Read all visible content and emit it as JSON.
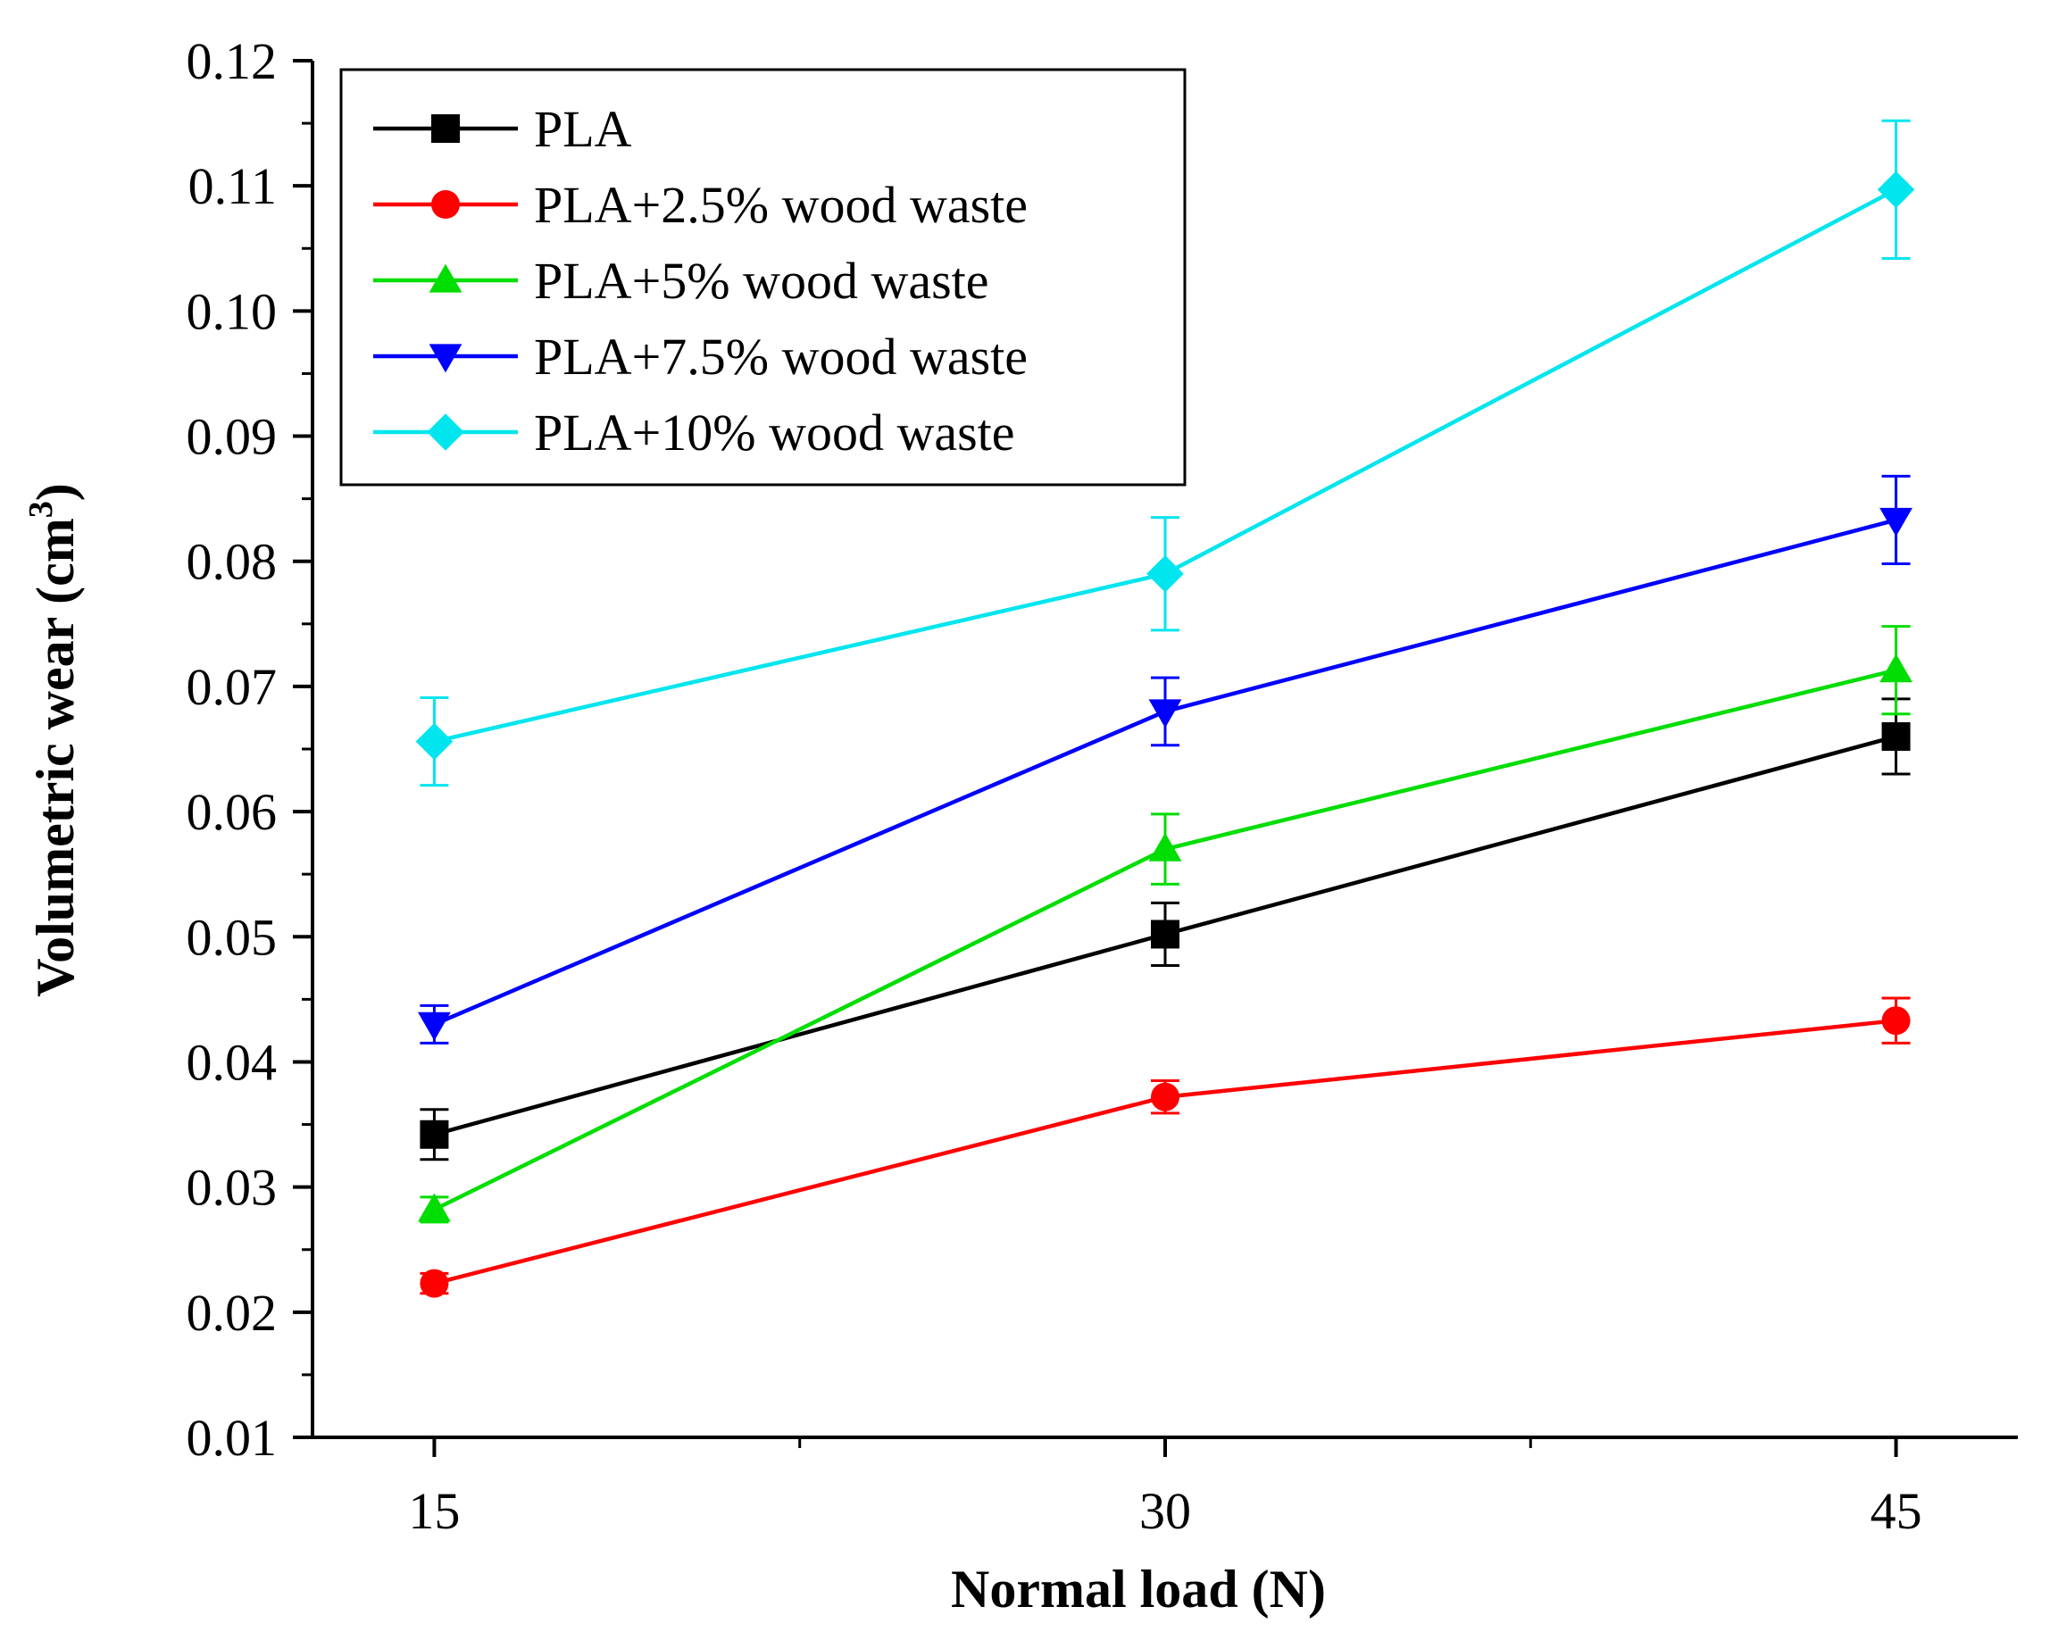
{
  "chart_data": {
    "type": "line",
    "title": "",
    "xlabel": "Normal load (N)",
    "ylabel_main": "Volumetric wear (cm",
    "ylabel_sup": "3",
    "ylabel_close": ")",
    "x": [
      15,
      30,
      45
    ],
    "xlim": [
      12.5,
      47.5
    ],
    "xticks": [
      15,
      30,
      45
    ],
    "x_minor_ticks": [
      22.5,
      37.5
    ],
    "ylim": [
      0.01,
      0.12
    ],
    "yticks": [
      0.01,
      0.02,
      0.03,
      0.04,
      0.05,
      0.06,
      0.07,
      0.08,
      0.09,
      0.1,
      0.11,
      0.12
    ],
    "ytick_labels": [
      "0.01",
      "0.02",
      "0.03",
      "0.04",
      "0.05",
      "0.06",
      "0.07",
      "0.08",
      "0.09",
      "0.10",
      "0.11",
      "0.12"
    ],
    "legend_position": "top-left",
    "grid": false,
    "series": [
      {
        "name": "PLA",
        "color": "#000000",
        "marker": "square",
        "values": [
          0.0342,
          0.0502,
          0.066
        ],
        "errors": [
          0.002,
          0.0025,
          0.003
        ]
      },
      {
        "name": "PLA+2.5% wood waste",
        "color": "#ff0000",
        "marker": "circle",
        "values": [
          0.0223,
          0.0372,
          0.0433
        ],
        "errors": [
          0.0008,
          0.0013,
          0.0018
        ]
      },
      {
        "name": "PLA+5% wood waste",
        "color": "#00dd00",
        "marker": "triangle-up",
        "values": [
          0.0282,
          0.057,
          0.0713
        ],
        "errors": [
          0.001,
          0.0028,
          0.0035
        ]
      },
      {
        "name": "PLA+7.5% wood waste",
        "color": "#0000ff",
        "marker": "triangle-down",
        "values": [
          0.043,
          0.068,
          0.0833
        ],
        "errors": [
          0.0015,
          0.0027,
          0.0035
        ]
      },
      {
        "name": "PLA+10% wood waste",
        "color": "#00e5ee",
        "marker": "diamond",
        "values": [
          0.0656,
          0.079,
          0.1097
        ],
        "errors": [
          0.0035,
          0.0045,
          0.0055
        ]
      }
    ]
  }
}
